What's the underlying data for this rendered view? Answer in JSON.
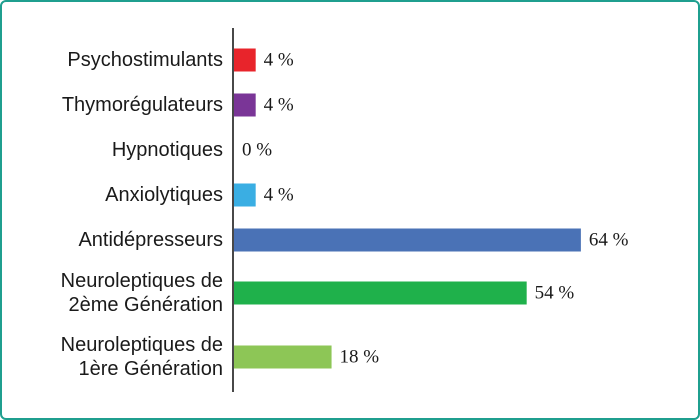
{
  "chart_data": {
    "type": "bar",
    "orientation": "horizontal",
    "categories": [
      [
        "Psychostimulants"
      ],
      [
        "Thymorégulateurs"
      ],
      [
        "Hypnotiques"
      ],
      [
        "Anxiolytiques"
      ],
      [
        "Antidépresseurs"
      ],
      [
        "Neuroleptiques de",
        "2ème Génération"
      ],
      [
        "Neuroleptiques de",
        "1ère Génération"
      ]
    ],
    "values": [
      4,
      4,
      0,
      4,
      64,
      54,
      18
    ],
    "value_labels": [
      "4 %",
      "4 %",
      "0 %",
      "4 %",
      "64 %",
      "54 %",
      "18 %"
    ],
    "colors": [
      "#e8242b",
      "#7a3597",
      "#ffffff",
      "#3aaee3",
      "#4a72b6",
      "#1fb14b",
      "#8dc656"
    ],
    "xlim": [
      0,
      70
    ],
    "grid": false,
    "legend": "none"
  }
}
